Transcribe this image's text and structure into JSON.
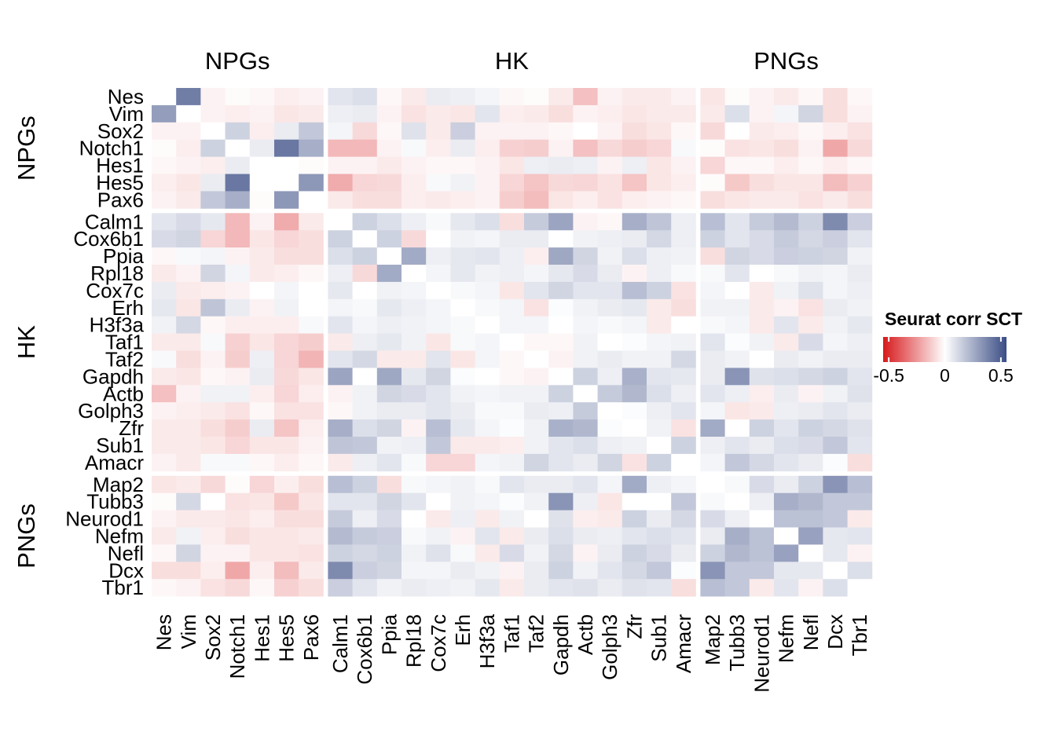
{
  "chart_data": {
    "type": "heatmap",
    "genes": [
      "Nes",
      "Vim",
      "Sox2",
      "Notch1",
      "Hes1",
      "Hes5",
      "Pax6",
      "Calm1",
      "Cox6b1",
      "Ppia",
      "Rpl18",
      "Cox7c",
      "Erh",
      "H3f3a",
      "Taf1",
      "Taf2",
      "Gapdh",
      "Actb",
      "Golph3",
      "Zfr",
      "Sub1",
      "Amacr",
      "Map2",
      "Tubb3",
      "Neurod1",
      "Nefm",
      "Nefl",
      "Dcx",
      "Tbr1"
    ],
    "groups": [
      {
        "label": "NPGs",
        "size": 7
      },
      {
        "label": "HK",
        "size": 15
      },
      {
        "label": "PNGs",
        "size": 7
      }
    ],
    "legend": {
      "title": "Seurat corr SCT",
      "ticks": [
        "-0.5",
        "0",
        "0.5"
      ],
      "min": -0.55,
      "max": 0.55
    },
    "colors": {
      "low": "#d7191c",
      "mid": "#ffffff",
      "high": "#3b4d85"
    },
    "values": [
      [
        0.0,
        0.4,
        -0.03,
        -0.01,
        -0.02,
        -0.04,
        -0.03,
        0.08,
        0.1,
        -0.02,
        -0.05,
        0.06,
        0.05,
        0.03,
        -0.02,
        -0.01,
        -0.05,
        -0.15,
        -0.03,
        -0.05,
        -0.05,
        -0.03,
        -0.06,
        -0.01,
        -0.03,
        -0.05,
        -0.02,
        -0.08,
        -0.02
      ],
      [
        0.3,
        0.0,
        -0.03,
        -0.04,
        -0.03,
        -0.06,
        -0.05,
        0.05,
        0.06,
        -0.03,
        -0.07,
        -0.05,
        -0.06,
        0.08,
        -0.04,
        -0.05,
        -0.08,
        -0.03,
        -0.04,
        -0.06,
        -0.05,
        -0.05,
        -0.05,
        0.1,
        -0.03,
        0.03,
        0.13,
        -0.08,
        -0.03
      ],
      [
        -0.03,
        -0.03,
        0.0,
        0.14,
        -0.04,
        0.06,
        0.17,
        0.03,
        -0.09,
        -0.02,
        0.09,
        -0.05,
        0.15,
        -0.03,
        -0.03,
        -0.03,
        -0.02,
        0.0,
        -0.03,
        -0.08,
        -0.06,
        -0.02,
        -0.09,
        0.0,
        -0.05,
        -0.04,
        -0.02,
        -0.04,
        -0.07
      ],
      [
        -0.01,
        -0.04,
        0.14,
        0.0,
        0.06,
        0.42,
        0.25,
        -0.17,
        -0.17,
        -0.03,
        0.02,
        -0.04,
        0.06,
        -0.04,
        -0.11,
        -0.12,
        -0.03,
        -0.15,
        -0.09,
        -0.12,
        -0.1,
        0.02,
        -0.01,
        -0.07,
        -0.06,
        -0.08,
        -0.03,
        -0.21,
        -0.09
      ],
      [
        -0.02,
        -0.03,
        -0.04,
        0.06,
        0.0,
        0.0,
        -0.01,
        -0.03,
        -0.03,
        -0.05,
        -0.03,
        -0.02,
        -0.02,
        -0.03,
        -0.06,
        0.05,
        0.06,
        0.05,
        -0.03,
        0.05,
        -0.06,
        -0.03,
        -0.1,
        -0.02,
        -0.02,
        -0.04,
        -0.02,
        -0.04,
        -0.02
      ],
      [
        -0.04,
        -0.06,
        0.06,
        0.42,
        0.0,
        0.0,
        0.32,
        -0.2,
        -0.1,
        -0.09,
        -0.04,
        0.02,
        0.04,
        -0.03,
        -0.1,
        -0.14,
        -0.09,
        -0.1,
        -0.07,
        -0.14,
        -0.06,
        -0.04,
        -0.01,
        -0.13,
        -0.08,
        -0.06,
        -0.06,
        -0.16,
        -0.11
      ],
      [
        -0.03,
        -0.05,
        0.17,
        0.25,
        -0.01,
        0.32,
        0.0,
        -0.05,
        -0.08,
        -0.08,
        -0.04,
        -0.05,
        -0.04,
        -0.03,
        -0.12,
        -0.16,
        -0.06,
        -0.04,
        -0.07,
        -0.04,
        -0.03,
        -0.02,
        -0.08,
        -0.06,
        -0.05,
        -0.05,
        -0.07,
        -0.05,
        -0.08
      ],
      [
        0.08,
        0.11,
        0.07,
        -0.17,
        -0.03,
        -0.2,
        -0.05,
        0.0,
        0.14,
        0.1,
        0.05,
        0.02,
        0.07,
        0.1,
        -0.08,
        0.16,
        0.28,
        -0.03,
        -0.02,
        0.25,
        0.18,
        0.05,
        0.2,
        0.08,
        0.16,
        0.21,
        0.14,
        0.36,
        0.15
      ],
      [
        0.11,
        0.13,
        -0.1,
        -0.17,
        -0.06,
        -0.1,
        -0.08,
        0.14,
        0.0,
        0.14,
        -0.09,
        0.0,
        0.04,
        0.03,
        0.06,
        0.06,
        0.0,
        0.04,
        0.05,
        0.06,
        0.12,
        0.05,
        0.14,
        0.08,
        0.11,
        0.16,
        0.12,
        0.15,
        0.08
      ],
      [
        -0.02,
        0.02,
        0.03,
        -0.03,
        -0.05,
        -0.08,
        -0.08,
        0.1,
        0.14,
        0.0,
        0.26,
        0.05,
        0.07,
        0.08,
        0.05,
        -0.04,
        0.27,
        0.13,
        0.04,
        0.1,
        0.05,
        0.04,
        -0.08,
        0.13,
        0.11,
        0.15,
        0.14,
        0.13,
        0.04
      ],
      [
        -0.05,
        -0.03,
        0.13,
        0.03,
        -0.05,
        -0.04,
        -0.02,
        0.05,
        -0.09,
        0.26,
        0.0,
        0.03,
        0.07,
        0.04,
        0.05,
        0.03,
        0.07,
        0.11,
        0.06,
        -0.03,
        0.05,
        0.02,
        0.02,
        0.08,
        0.0,
        0.02,
        0.04,
        0.03,
        0.06
      ],
      [
        0.06,
        -0.05,
        -0.04,
        -0.03,
        0.0,
        0.03,
        0.0,
        0.07,
        0.0,
        0.04,
        0.03,
        0.0,
        0.02,
        0.03,
        -0.06,
        0.08,
        0.13,
        0.08,
        0.08,
        0.2,
        0.14,
        -0.07,
        0.03,
        0.0,
        -0.05,
        0.04,
        0.09,
        0.03,
        0.05
      ],
      [
        0.07,
        -0.06,
        0.18,
        0.06,
        -0.03,
        0.04,
        0.0,
        0.03,
        0.02,
        0.07,
        0.05,
        0.03,
        0.0,
        0.02,
        0.03,
        -0.07,
        0.01,
        0.04,
        0.06,
        0.07,
        -0.05,
        -0.08,
        0.04,
        0.04,
        -0.05,
        -0.03,
        -0.07,
        0.06,
        0.04
      ],
      [
        0.04,
        0.12,
        -0.02,
        -0.04,
        -0.04,
        -0.04,
        0.02,
        0.08,
        0.03,
        0.05,
        0.04,
        0.03,
        0.02,
        0.0,
        0.03,
        0.03,
        0.0,
        0.03,
        0.02,
        0.03,
        -0.05,
        0.0,
        0.02,
        0.03,
        -0.05,
        0.08,
        -0.05,
        0.04,
        0.07
      ],
      [
        -0.05,
        -0.05,
        0.02,
        -0.11,
        -0.06,
        -0.1,
        -0.12,
        -0.05,
        0.05,
        0.07,
        0.04,
        -0.06,
        0.02,
        0.03,
        0.0,
        -0.02,
        -0.02,
        0.04,
        0.0,
        0.01,
        0.03,
        0.04,
        0.08,
        0.01,
        0.04,
        -0.05,
        0.11,
        0.03,
        0.05
      ],
      [
        0.02,
        -0.08,
        -0.03,
        -0.12,
        0.05,
        -0.1,
        -0.18,
        0.08,
        0.12,
        -0.05,
        -0.05,
        0.08,
        -0.06,
        0.03,
        -0.02,
        0.0,
        -0.03,
        0.04,
        0.06,
        0.04,
        0.04,
        0.12,
        0.06,
        0.04,
        0.0,
        0.06,
        0.04,
        0.06,
        0.06
      ],
      [
        -0.05,
        -0.06,
        -0.02,
        -0.03,
        0.06,
        -0.09,
        -0.06,
        0.28,
        0.0,
        0.27,
        0.07,
        0.13,
        0.01,
        0.0,
        -0.02,
        -0.03,
        0.0,
        0.14,
        0.05,
        0.24,
        0.08,
        0.07,
        0.06,
        0.33,
        0.09,
        0.1,
        0.12,
        0.14,
        0.08
      ],
      [
        -0.15,
        -0.03,
        0.04,
        0.04,
        -0.04,
        -0.1,
        -0.04,
        -0.03,
        0.04,
        0.13,
        0.11,
        0.08,
        0.04,
        0.03,
        0.04,
        0.04,
        0.14,
        0.0,
        0.16,
        0.22,
        0.1,
        0.05,
        0.08,
        0.05,
        -0.04,
        0.06,
        -0.03,
        0.04,
        0.09
      ],
      [
        -0.03,
        -0.04,
        -0.05,
        -0.07,
        -0.02,
        -0.07,
        -0.07,
        -0.02,
        0.04,
        0.06,
        0.06,
        0.08,
        0.06,
        0.02,
        0.02,
        0.06,
        0.05,
        0.16,
        0.0,
        0.01,
        0.05,
        0.08,
        0.03,
        -0.06,
        -0.05,
        0.05,
        0.06,
        0.08,
        0.06
      ],
      [
        -0.05,
        -0.05,
        -0.08,
        -0.12,
        0.06,
        -0.14,
        -0.04,
        0.25,
        0.1,
        0.13,
        -0.03,
        0.2,
        0.07,
        0.03,
        0.01,
        0.04,
        0.24,
        0.22,
        0.01,
        0.0,
        0.04,
        -0.07,
        0.26,
        0.0,
        0.14,
        0.08,
        0.14,
        0.12,
        0.09
      ],
      [
        -0.05,
        -0.05,
        -0.06,
        -0.1,
        -0.06,
        -0.06,
        -0.03,
        0.18,
        0.17,
        0.04,
        0.05,
        0.17,
        -0.05,
        -0.05,
        -0.04,
        0.04,
        0.08,
        0.1,
        0.05,
        0.04,
        0.0,
        0.14,
        0.05,
        0.08,
        0.06,
        0.1,
        0.11,
        0.17,
        0.08
      ],
      [
        -0.03,
        -0.05,
        0.02,
        0.02,
        -0.02,
        -0.04,
        -0.02,
        -0.05,
        0.05,
        0.08,
        0.02,
        -0.1,
        -0.1,
        0.03,
        0.04,
        0.13,
        0.08,
        0.06,
        0.13,
        -0.07,
        0.14,
        0.0,
        0.03,
        0.17,
        0.12,
        0.08,
        0.06,
        0.01,
        -0.08
      ],
      [
        -0.06,
        -0.05,
        -0.09,
        -0.01,
        -0.1,
        -0.04,
        -0.08,
        0.2,
        0.14,
        -0.08,
        0.02,
        0.03,
        0.04,
        0.02,
        0.08,
        0.06,
        0.06,
        0.08,
        0.03,
        0.26,
        0.05,
        0.03,
        0.0,
        0.02,
        0.11,
        0.06,
        0.14,
        0.33,
        0.2
      ],
      [
        -0.01,
        0.12,
        0.0,
        -0.07,
        -0.06,
        -0.13,
        -0.06,
        0.08,
        0.08,
        0.13,
        0.08,
        0.0,
        0.04,
        0.03,
        0.01,
        0.04,
        0.33,
        0.05,
        -0.06,
        0.0,
        0.0,
        0.17,
        0.02,
        0.0,
        0.05,
        0.25,
        0.22,
        0.17,
        0.17
      ],
      [
        -0.03,
        -0.05,
        -0.05,
        -0.06,
        -0.04,
        -0.08,
        -0.08,
        0.16,
        0.05,
        0.11,
        0.0,
        -0.05,
        0.05,
        -0.05,
        0.04,
        0.0,
        0.09,
        -0.04,
        -0.05,
        0.14,
        0.06,
        0.12,
        0.11,
        0.05,
        0.0,
        0.19,
        0.19,
        0.17,
        -0.05
      ],
      [
        -0.05,
        0.04,
        -0.04,
        -0.08,
        -0.06,
        -0.06,
        -0.05,
        0.21,
        0.16,
        0.15,
        0.02,
        0.04,
        -0.03,
        0.08,
        -0.05,
        0.06,
        0.1,
        0.06,
        0.05,
        0.08,
        0.1,
        0.08,
        0.06,
        0.25,
        0.19,
        0.0,
        0.29,
        0.07,
        0.08
      ],
      [
        -0.02,
        0.13,
        -0.03,
        -0.03,
        -0.06,
        -0.06,
        -0.07,
        0.14,
        0.12,
        0.14,
        0.04,
        0.09,
        0.02,
        -0.05,
        0.11,
        0.04,
        0.12,
        -0.03,
        0.06,
        0.14,
        0.11,
        0.06,
        0.14,
        0.22,
        0.19,
        0.29,
        0.0,
        0.07,
        -0.03
      ],
      [
        -0.08,
        -0.08,
        -0.04,
        -0.21,
        -0.04,
        -0.16,
        -0.05,
        0.36,
        0.15,
        0.13,
        0.03,
        0.03,
        0.06,
        0.04,
        -0.03,
        0.06,
        0.14,
        0.04,
        0.08,
        0.12,
        0.17,
        0.01,
        0.33,
        0.17,
        0.17,
        0.07,
        0.07,
        0.0,
        0.1
      ],
      [
        -0.02,
        -0.03,
        -0.07,
        -0.09,
        -0.02,
        -0.11,
        -0.08,
        0.15,
        0.08,
        0.04,
        0.06,
        0.05,
        0.04,
        0.07,
        -0.05,
        0.06,
        0.08,
        0.09,
        0.06,
        0.09,
        0.08,
        -0.08,
        0.2,
        0.17,
        -0.05,
        0.08,
        -0.03,
        0.1,
        0.0
      ]
    ]
  }
}
